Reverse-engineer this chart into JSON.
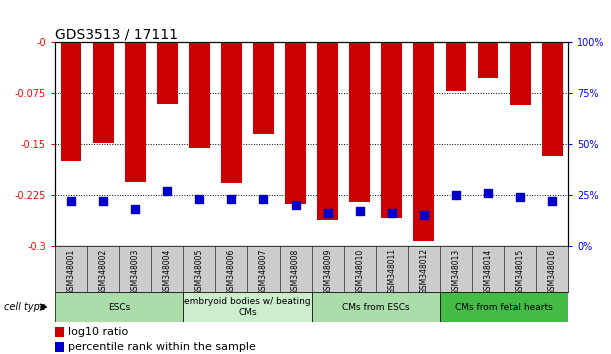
{
  "title": "GDS3513 / 17111",
  "samples": [
    "GSM348001",
    "GSM348002",
    "GSM348003",
    "GSM348004",
    "GSM348005",
    "GSM348006",
    "GSM348007",
    "GSM348008",
    "GSM348009",
    "GSM348010",
    "GSM348011",
    "GSM348012",
    "GSM348013",
    "GSM348014",
    "GSM348015",
    "GSM348016"
  ],
  "log10_ratio": [
    -0.175,
    -0.148,
    -0.205,
    -0.09,
    -0.155,
    -0.207,
    -0.135,
    -0.238,
    -0.262,
    -0.235,
    -0.258,
    -0.292,
    -0.072,
    -0.053,
    -0.092,
    -0.168
  ],
  "percentile_rank": [
    22,
    22,
    18,
    27,
    23,
    23,
    23,
    20,
    16,
    17,
    16,
    15,
    25,
    26,
    24,
    22
  ],
  "bar_color": "#cc0000",
  "dot_color": "#0000cc",
  "ylim_left": [
    -0.3,
    0.0
  ],
  "ylim_right": [
    0,
    100
  ],
  "yticks_left": [
    0.0,
    -0.075,
    -0.15,
    -0.225,
    -0.3
  ],
  "yticks_right": [
    0,
    25,
    50,
    75,
    100
  ],
  "ytick_labels_left": [
    "-0",
    "-0.075",
    "-0.15",
    "-0.225",
    "-0.3"
  ],
  "ytick_labels_right": [
    "0%",
    "25%",
    "50%",
    "75%",
    "100%"
  ],
  "cell_type_groups": [
    {
      "label": "ESCs",
      "start": 0,
      "end": 3,
      "color_idx": 0
    },
    {
      "label": "embryoid bodies w/ beating\nCMs",
      "start": 4,
      "end": 7,
      "color_idx": 1
    },
    {
      "label": "CMs from ESCs",
      "start": 8,
      "end": 11,
      "color_idx": 0
    },
    {
      "label": "CMs from fetal hearts",
      "start": 12,
      "end": 15,
      "color_idx": 2
    }
  ],
  "group_colors": [
    "#aaddaa",
    "#cceecc",
    "#44bb44"
  ],
  "legend_red_label": "log10 ratio",
  "legend_blue_label": "percentile rank within the sample",
  "cell_type_label": "cell type",
  "bar_width": 0.65,
  "dot_size": 30,
  "background_color": "#ffffff",
  "title_fontsize": 10,
  "axis_fontsize": 7,
  "label_fontsize": 7,
  "legend_fontsize": 8
}
